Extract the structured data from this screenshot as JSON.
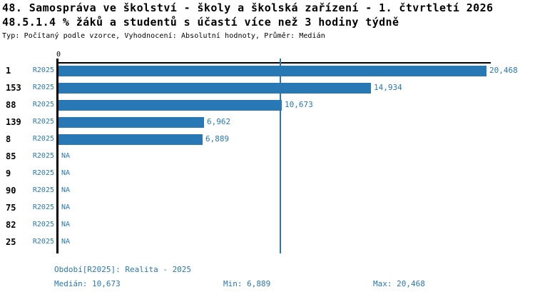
{
  "title": "48. Samospráva ve školství - školy a školská zařízení - 1. čtvrtletí 2026",
  "subtitle": "48.5.1.4 % žáků a studentů s účastí více než 3 hodiny týdně",
  "meta": "Typ: Počítaný podle vzorce, Vyhodnocení: Absolutní hodnoty, Průměr: Medián",
  "colors": {
    "accent": "#2878b5",
    "axis": "#000000",
    "background": "#ffffff"
  },
  "chart_data": {
    "type": "bar",
    "orientation": "horizontal",
    "series_name": "R2025",
    "categories": [
      "1",
      "153",
      "88",
      "139",
      "8",
      "85",
      "9",
      "90",
      "75",
      "82",
      "25"
    ],
    "bars": [
      {
        "category": "1",
        "series": "R2025",
        "value": 20468,
        "label": "20,468"
      },
      {
        "category": "153",
        "series": "R2025",
        "value": 14934,
        "label": "14,934"
      },
      {
        "category": "88",
        "series": "R2025",
        "value": 10673,
        "label": "10,673"
      },
      {
        "category": "139",
        "series": "R2025",
        "value": 6962,
        "label": "6,962"
      },
      {
        "category": "8",
        "series": "R2025",
        "value": 6889,
        "label": "6,889"
      },
      {
        "category": "85",
        "series": "R2025",
        "value": null,
        "label": "NA"
      },
      {
        "category": "9",
        "series": "R2025",
        "value": null,
        "label": "NA"
      },
      {
        "category": "90",
        "series": "R2025",
        "value": null,
        "label": "NA"
      },
      {
        "category": "75",
        "series": "R2025",
        "value": null,
        "label": "NA"
      },
      {
        "category": "82",
        "series": "R2025",
        "value": null,
        "label": "NA"
      },
      {
        "category": "25",
        "series": "R2025",
        "value": null,
        "label": "NA"
      }
    ],
    "x_axis": {
      "zero_label": "0",
      "min": 0,
      "max": 20468,
      "grid": false
    },
    "median": {
      "value": 10673,
      "line_shown": true
    },
    "legend_position": "none",
    "stats": {
      "median": 10673,
      "min": 6889,
      "max": 20468
    }
  },
  "footer": {
    "period": "Období[R2025]: Realita - 2025",
    "median": "Medián: 10,673",
    "min": "Min: 6,889",
    "max": "Max: 20,468"
  }
}
